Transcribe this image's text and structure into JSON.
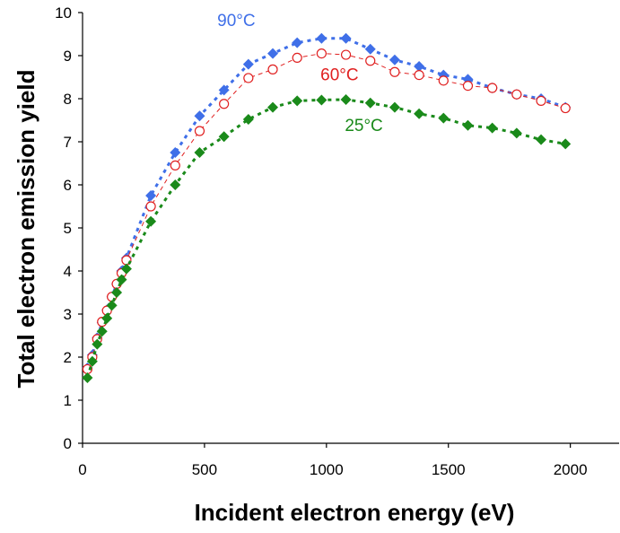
{
  "chart_data": {
    "type": "scatter",
    "title": "",
    "xlabel": "Incident electron energy (eV)",
    "ylabel": "Total electron emission yield",
    "xlim": [
      0,
      2200
    ],
    "ylim": [
      0,
      10
    ],
    "xticks": [
      0,
      500,
      1000,
      1500,
      2000
    ],
    "yticks": [
      0,
      1,
      2,
      3,
      4,
      5,
      6,
      7,
      8,
      9,
      10
    ],
    "grid": false,
    "legend": "none",
    "series": [
      {
        "name": "90°C",
        "color": "#3f6fe8",
        "marker": "diamond-filled",
        "line": "dashed",
        "x": [
          20,
          40,
          60,
          80,
          100,
          120,
          140,
          160,
          180,
          280,
          380,
          480,
          580,
          680,
          780,
          880,
          980,
          1080,
          1180,
          1280,
          1380,
          1480,
          1580,
          1680,
          1780,
          1880,
          1980
        ],
        "y": [
          1.75,
          2.05,
          2.45,
          2.8,
          3.1,
          3.4,
          3.7,
          4.0,
          4.3,
          5.75,
          6.75,
          7.6,
          8.2,
          8.8,
          9.05,
          9.3,
          9.4,
          9.4,
          9.15,
          8.9,
          8.75,
          8.55,
          8.45,
          8.25,
          8.1,
          8.0,
          7.8
        ]
      },
      {
        "name": "60°C",
        "color": "#e02020",
        "marker": "circle-open",
        "line": "dashed",
        "x": [
          20,
          40,
          60,
          80,
          100,
          120,
          140,
          160,
          180,
          280,
          380,
          480,
          580,
          680,
          780,
          880,
          980,
          1080,
          1180,
          1280,
          1380,
          1480,
          1580,
          1680,
          1780,
          1880,
          1980
        ],
        "y": [
          1.72,
          2.0,
          2.42,
          2.82,
          3.08,
          3.4,
          3.7,
          3.95,
          4.25,
          5.5,
          6.45,
          7.25,
          7.88,
          8.48,
          8.68,
          8.95,
          9.05,
          9.02,
          8.88,
          8.62,
          8.55,
          8.42,
          8.3,
          8.25,
          8.1,
          7.95,
          7.78
        ]
      },
      {
        "name": "25°C",
        "color": "#1a8a1a",
        "marker": "diamond-filled",
        "line": "dashed",
        "x": [
          20,
          40,
          60,
          80,
          100,
          120,
          140,
          160,
          180,
          280,
          380,
          480,
          580,
          680,
          780,
          880,
          980,
          1080,
          1180,
          1280,
          1380,
          1480,
          1580,
          1680,
          1780,
          1880,
          1980
        ],
        "y": [
          1.52,
          1.9,
          2.3,
          2.6,
          2.9,
          3.2,
          3.5,
          3.8,
          4.05,
          5.15,
          6.0,
          6.75,
          7.12,
          7.52,
          7.8,
          7.95,
          7.97,
          7.98,
          7.9,
          7.8,
          7.65,
          7.55,
          7.38,
          7.32,
          7.2,
          7.05,
          6.95
        ]
      }
    ]
  }
}
